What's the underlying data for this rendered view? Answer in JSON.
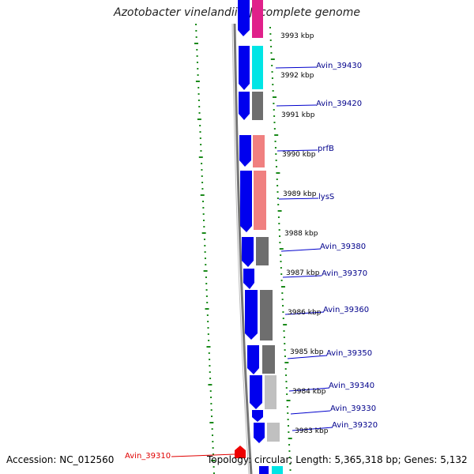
{
  "title": "Azotobacter vinelandii DJ, complete genome",
  "footer": {
    "accession": "Accession: NC_012560",
    "topology": "Topology: circular; Length: 5,365,318 bp; Genes: 5,132"
  },
  "colors": {
    "forward_cds": "#0000ee",
    "label": "#00008b",
    "highlight_label": "#e00000",
    "gc_dots": "#1a8a1a",
    "backbone": "#888888"
  },
  "kbp_ticks": [
    "3993 kbp",
    "3992 kbp",
    "3991 kbp",
    "3990 kbp",
    "3989 kbp",
    "3988 kbp",
    "3987 kbp",
    "3986 kbp",
    "3985 kbp",
    "3984 kbp",
    "3983 kbp"
  ],
  "gene_labels": [
    "Avin_39430",
    "Avin_39420",
    "prfB",
    "lysS",
    "Avin_39380",
    "Avin_39370",
    "Avin_39360",
    "Avin_39350",
    "Avin_39340",
    "Avin_39330",
    "Avin_39320"
  ],
  "highlight_gene": "Avin_39310"
}
